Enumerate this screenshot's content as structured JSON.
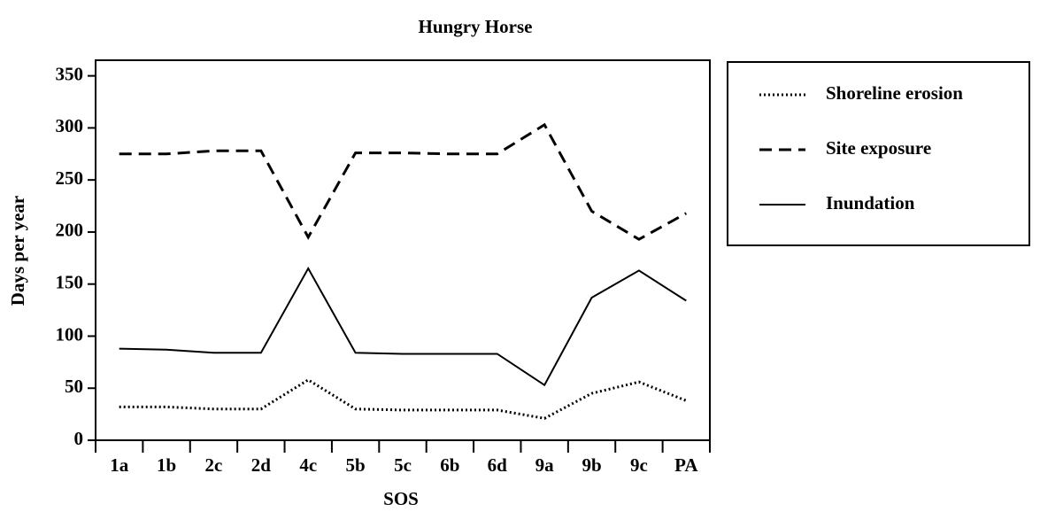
{
  "chart_data": {
    "type": "line",
    "title": "Hungry Horse",
    "x_label": "SOS",
    "y_label": "Days per year",
    "categories": [
      "1a",
      "1b",
      "2c",
      "2d",
      "4c",
      "5b",
      "5c",
      "6b",
      "6d",
      "9a",
      "9b",
      "9c",
      "PA"
    ],
    "series": [
      {
        "name": "Shoreline erosion",
        "color": "#000000",
        "style": "dotted",
        "values": [
          32,
          32,
          30,
          30,
          58,
          30,
          29,
          29,
          29,
          21,
          45,
          56,
          38
        ]
      },
      {
        "name": "Site exposure",
        "color": "#000000",
        "style": "dashed",
        "values": [
          275,
          275,
          278,
          278,
          195,
          276,
          276,
          275,
          275,
          303,
          220,
          193,
          218
        ]
      },
      {
        "name": "Inundation",
        "color": "#000000",
        "style": "solid",
        "values": [
          88,
          87,
          84,
          84,
          165,
          84,
          83,
          83,
          83,
          53,
          137,
          163,
          134
        ]
      }
    ],
    "ylim": [
      0,
      365
    ],
    "yticks": [
      0,
      50,
      100,
      150,
      200,
      250,
      300,
      350
    ],
    "legend": "right",
    "grid": false
  }
}
